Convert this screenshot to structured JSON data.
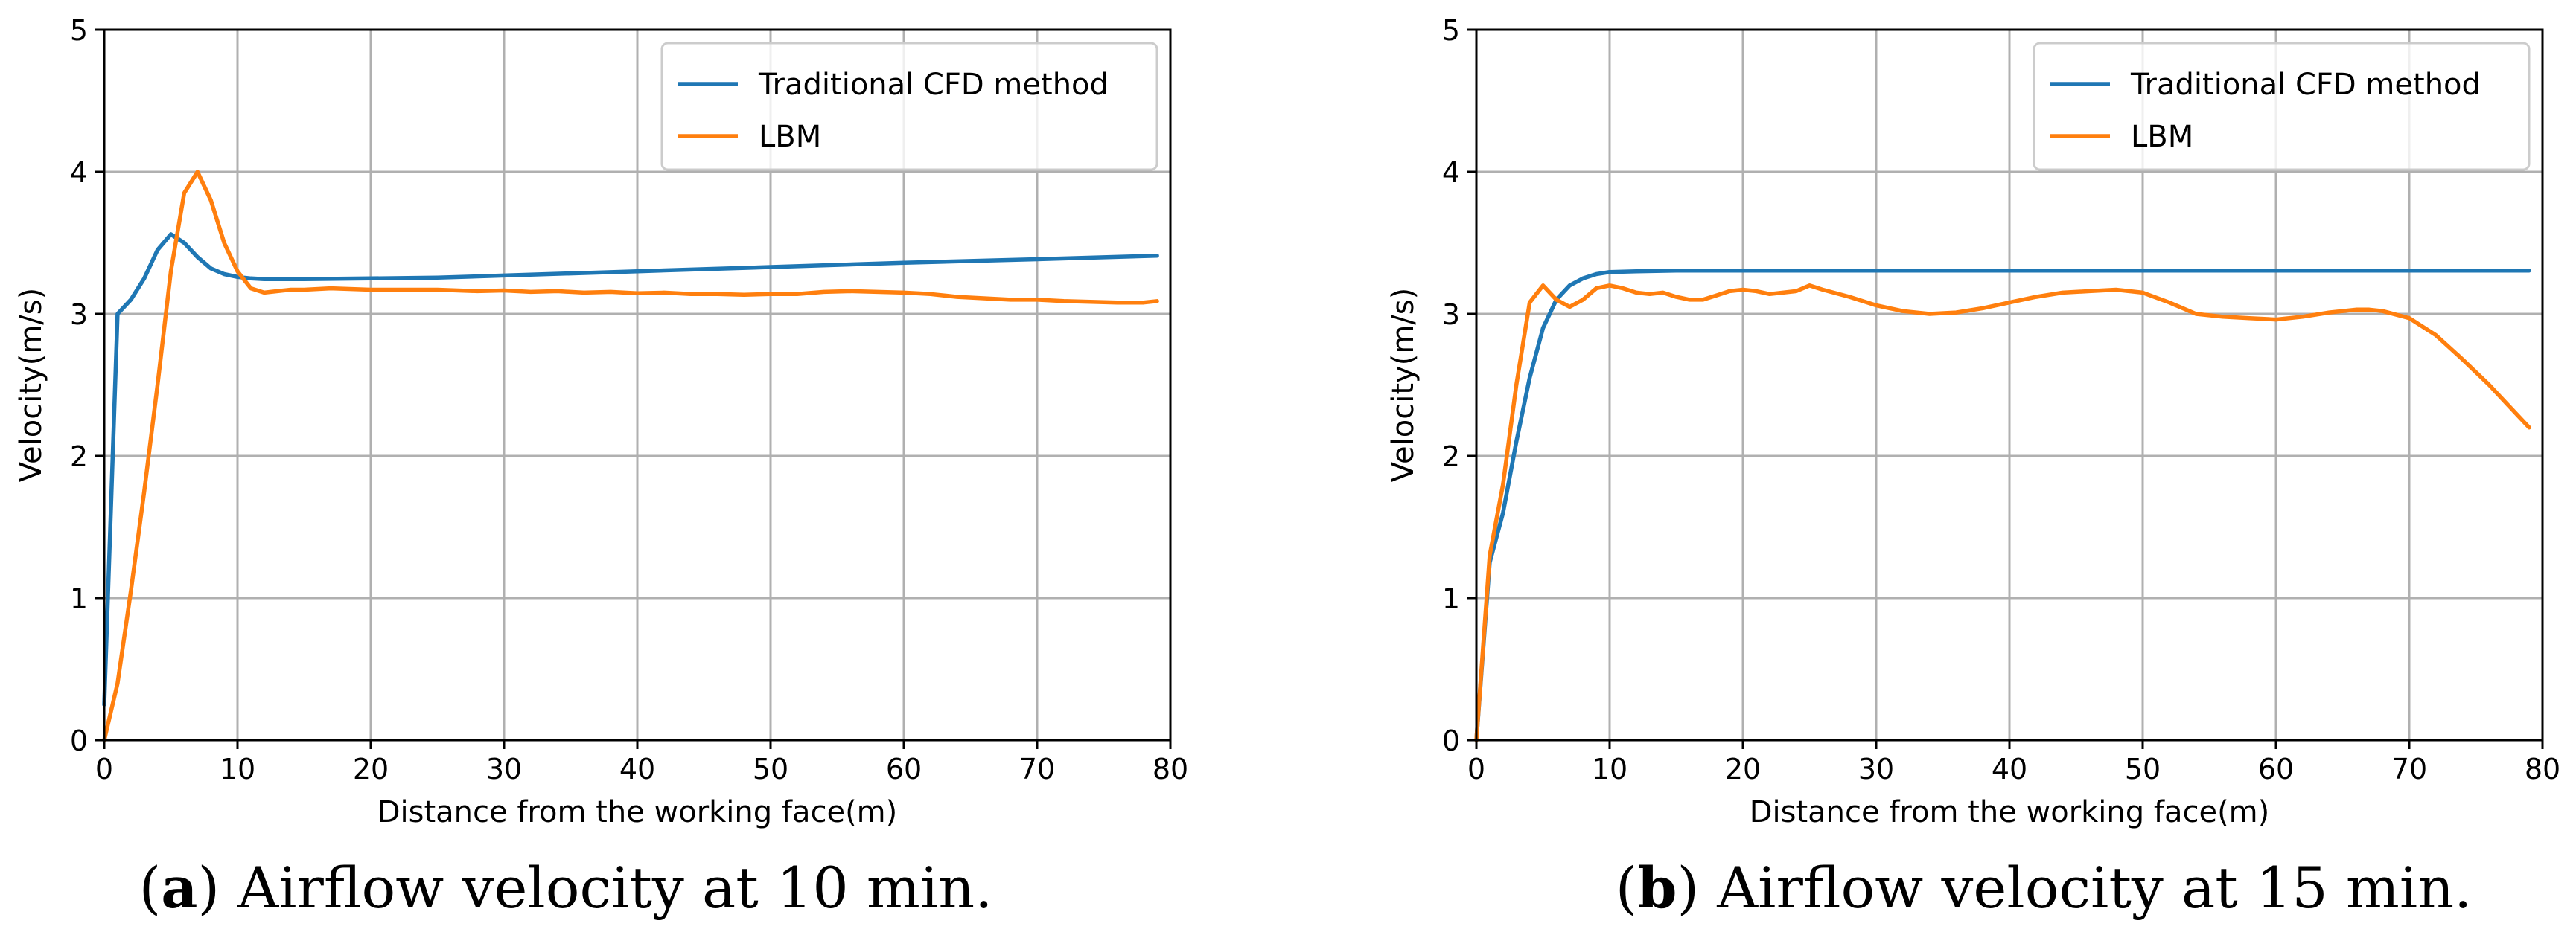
{
  "chart_data": [
    {
      "type": "line",
      "xlabel": "Distance from the working face(m)",
      "ylabel": "Velocity(m/s)",
      "xlim": [
        0,
        80
      ],
      "ylim": [
        0,
        5
      ],
      "xticks": [
        0,
        10,
        20,
        30,
        40,
        50,
        60,
        70,
        80
      ],
      "yticks": [
        0,
        1,
        2,
        3,
        4,
        5
      ],
      "grid": true,
      "legend_position": "top-right",
      "caption": {
        "paren_open": "(",
        "letter": "a",
        "text": ") Airflow velocity at 10 min."
      },
      "series": [
        {
          "name": "Traditional CFD method",
          "color": "#1f77b4",
          "points": [
            [
              0,
              0.25
            ],
            [
              1,
              3.0
            ],
            [
              2,
              3.1
            ],
            [
              3,
              3.25
            ],
            [
              4,
              3.45
            ],
            [
              5,
              3.56
            ],
            [
              6,
              3.5
            ],
            [
              7,
              3.4
            ],
            [
              8,
              3.32
            ],
            [
              9,
              3.28
            ],
            [
              10,
              3.26
            ],
            [
              11,
              3.25
            ],
            [
              12,
              3.245
            ],
            [
              15,
              3.245
            ],
            [
              20,
              3.25
            ],
            [
              25,
              3.255
            ],
            [
              30,
              3.27
            ],
            [
              40,
              3.3
            ],
            [
              50,
              3.33
            ],
            [
              60,
              3.36
            ],
            [
              70,
              3.385
            ],
            [
              79,
              3.41
            ]
          ]
        },
        {
          "name": "LBM",
          "color": "#ff7f0e",
          "points": [
            [
              0,
              0.0
            ],
            [
              1,
              0.4
            ],
            [
              2,
              1.05
            ],
            [
              3,
              1.75
            ],
            [
              4,
              2.5
            ],
            [
              5,
              3.3
            ],
            [
              6,
              3.85
            ],
            [
              7,
              4.0
            ],
            [
              8,
              3.8
            ],
            [
              9,
              3.5
            ],
            [
              10,
              3.3
            ],
            [
              11,
              3.18
            ],
            [
              12,
              3.15
            ],
            [
              13,
              3.16
            ],
            [
              14,
              3.17
            ],
            [
              15,
              3.17
            ],
            [
              17,
              3.18
            ],
            [
              20,
              3.17
            ],
            [
              25,
              3.17
            ],
            [
              28,
              3.16
            ],
            [
              30,
              3.165
            ],
            [
              32,
              3.155
            ],
            [
              34,
              3.16
            ],
            [
              36,
              3.15
            ],
            [
              38,
              3.155
            ],
            [
              40,
              3.145
            ],
            [
              42,
              3.15
            ],
            [
              44,
              3.14
            ],
            [
              46,
              3.14
            ],
            [
              48,
              3.135
            ],
            [
              50,
              3.14
            ],
            [
              52,
              3.14
            ],
            [
              54,
              3.155
            ],
            [
              56,
              3.16
            ],
            [
              58,
              3.155
            ],
            [
              60,
              3.15
            ],
            [
              62,
              3.14
            ],
            [
              64,
              3.12
            ],
            [
              66,
              3.11
            ],
            [
              68,
              3.1
            ],
            [
              70,
              3.1
            ],
            [
              72,
              3.09
            ],
            [
              74,
              3.085
            ],
            [
              76,
              3.08
            ],
            [
              78,
              3.08
            ],
            [
              79,
              3.09
            ]
          ]
        }
      ]
    },
    {
      "type": "line",
      "xlabel": "Distance from the working face(m)",
      "ylabel": "Velocity(m/s)",
      "xlim": [
        0,
        80
      ],
      "ylim": [
        0,
        5
      ],
      "xticks": [
        0,
        10,
        20,
        30,
        40,
        50,
        60,
        70,
        80
      ],
      "yticks": [
        0,
        1,
        2,
        3,
        4,
        5
      ],
      "grid": true,
      "legend_position": "top-right",
      "caption": {
        "paren_open": "(",
        "letter": "b",
        "text": ") Airflow velocity at 15 min."
      },
      "series": [
        {
          "name": "Traditional CFD method",
          "color": "#1f77b4",
          "points": [
            [
              0,
              0.0
            ],
            [
              1,
              1.25
            ],
            [
              2,
              1.6
            ],
            [
              3,
              2.1
            ],
            [
              4,
              2.55
            ],
            [
              5,
              2.9
            ],
            [
              6,
              3.1
            ],
            [
              7,
              3.2
            ],
            [
              8,
              3.25
            ],
            [
              9,
              3.28
            ],
            [
              10,
              3.295
            ],
            [
              12,
              3.3
            ],
            [
              15,
              3.305
            ],
            [
              20,
              3.305
            ],
            [
              30,
              3.305
            ],
            [
              40,
              3.305
            ],
            [
              50,
              3.305
            ],
            [
              60,
              3.305
            ],
            [
              70,
              3.305
            ],
            [
              79,
              3.305
            ]
          ]
        },
        {
          "name": "LBM",
          "color": "#ff7f0e",
          "points": [
            [
              0,
              0.0
            ],
            [
              1,
              1.3
            ],
            [
              2,
              1.8
            ],
            [
              3,
              2.5
            ],
            [
              4,
              3.08
            ],
            [
              5,
              3.2
            ],
            [
              6,
              3.1
            ],
            [
              7,
              3.05
            ],
            [
              8,
              3.1
            ],
            [
              9,
              3.18
            ],
            [
              10,
              3.2
            ],
            [
              11,
              3.18
            ],
            [
              12,
              3.15
            ],
            [
              13,
              3.14
            ],
            [
              14,
              3.15
            ],
            [
              15,
              3.12
            ],
            [
              16,
              3.1
            ],
            [
              17,
              3.1
            ],
            [
              18,
              3.13
            ],
            [
              19,
              3.16
            ],
            [
              20,
              3.17
            ],
            [
              21,
              3.16
            ],
            [
              22,
              3.14
            ],
            [
              23,
              3.15
            ],
            [
              24,
              3.16
            ],
            [
              25,
              3.2
            ],
            [
              26,
              3.17
            ],
            [
              28,
              3.12
            ],
            [
              30,
              3.06
            ],
            [
              32,
              3.02
            ],
            [
              34,
              3.0
            ],
            [
              36,
              3.01
            ],
            [
              38,
              3.04
            ],
            [
              40,
              3.08
            ],
            [
              42,
              3.12
            ],
            [
              44,
              3.15
            ],
            [
              46,
              3.16
            ],
            [
              48,
              3.17
            ],
            [
              50,
              3.15
            ],
            [
              52,
              3.08
            ],
            [
              54,
              3.0
            ],
            [
              56,
              2.98
            ],
            [
              58,
              2.97
            ],
            [
              60,
              2.96
            ],
            [
              62,
              2.98
            ],
            [
              64,
              3.01
            ],
            [
              66,
              3.03
            ],
            [
              67,
              3.03
            ],
            [
              68,
              3.02
            ],
            [
              70,
              2.97
            ],
            [
              72,
              2.85
            ],
            [
              74,
              2.68
            ],
            [
              76,
              2.5
            ],
            [
              78,
              2.3
            ],
            [
              79,
              2.2
            ]
          ]
        }
      ]
    }
  ]
}
